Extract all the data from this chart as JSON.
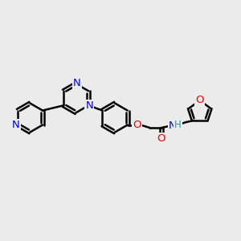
{
  "bg_color": "#ebebeb",
  "bond_color": "#000000",
  "bond_width": 1.8,
  "N_color": "#0000ee",
  "O_color": "#ee0000",
  "H_color": "#3a9090",
  "fontsize": 9.5,
  "xlim": [
    -2.0,
    6.5
  ],
  "ylim": [
    -2.0,
    2.5
  ]
}
